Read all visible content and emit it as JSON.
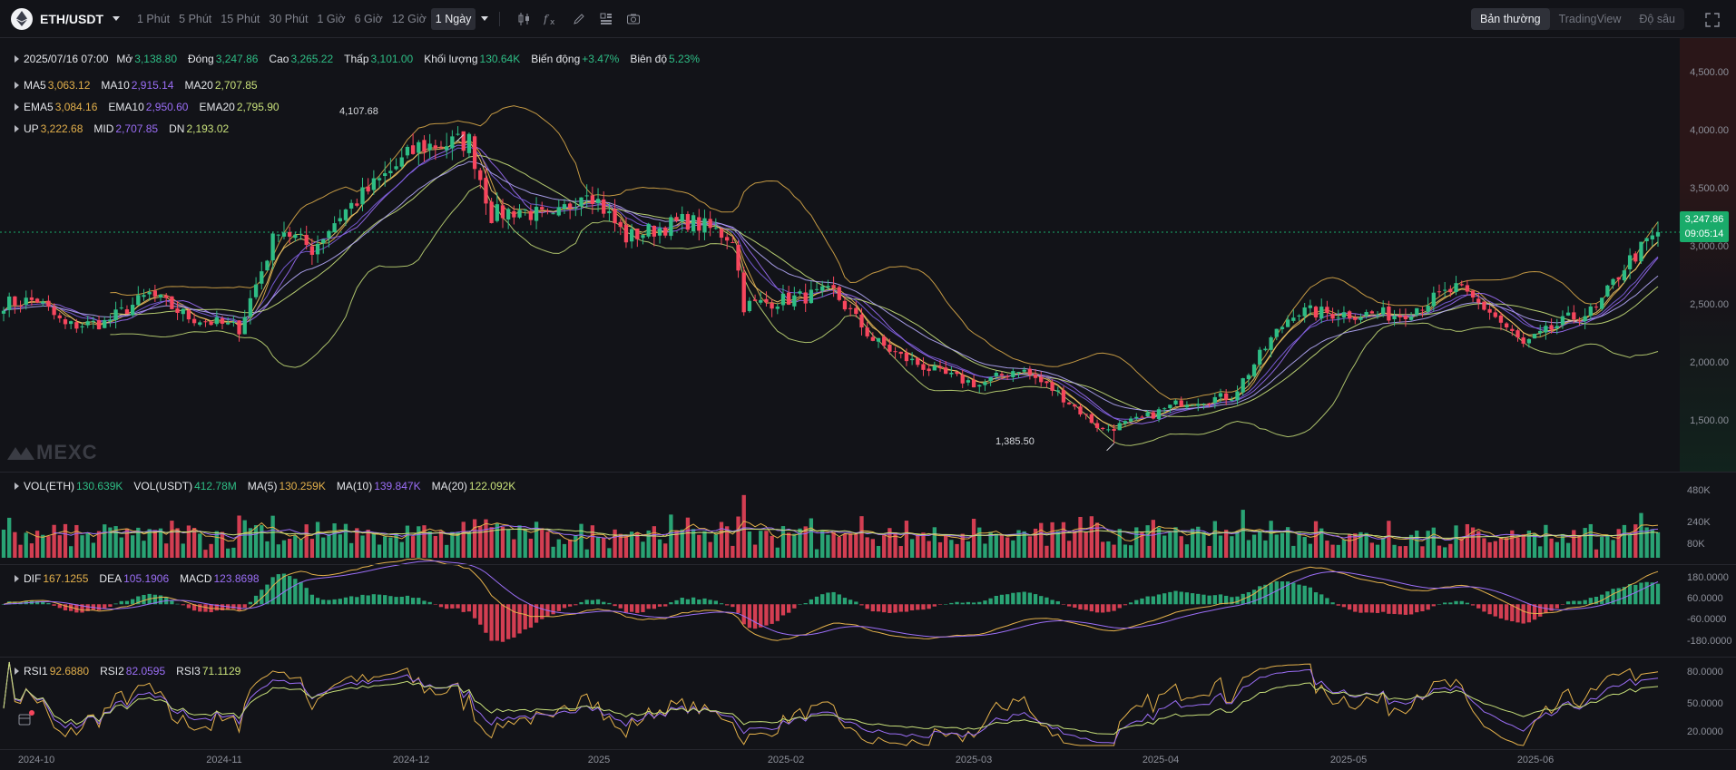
{
  "toolbar": {
    "pair": "ETH/USDT",
    "intervals": [
      "1 Phút",
      "5 Phút",
      "15 Phút",
      "30 Phút",
      "1 Giờ",
      "6 Giờ",
      "12 Giờ",
      "1 Ngày"
    ],
    "active_interval": "1 Ngày",
    "views": [
      "Bản thường",
      "TradingView",
      "Độ sâu"
    ],
    "active_view": "Bản thường"
  },
  "ohlc_legend": {
    "date": "2025/07/16 07:00",
    "open_label": "Mở",
    "open": "3,138.80",
    "close_label": "Đóng",
    "close": "3,247.86",
    "high_label": "Cao",
    "high": "3,265.22",
    "low_label": "Thấp",
    "low": "3,101.00",
    "volume_label": "Khối lượng",
    "volume": "130.64K",
    "change_label": "Biến động",
    "change": "+3.47%",
    "amplitude_label": "Biên độ",
    "amplitude": "5.23%"
  },
  "ma_legend": {
    "ma5_label": "MA5",
    "ma5": "3,063.12",
    "ma10_label": "MA10",
    "ma10": "2,915.14",
    "ma20_label": "MA20",
    "ma20": "2,707.85"
  },
  "ema_legend": {
    "ema5_label": "EMA5",
    "ema5": "3,084.16",
    "ema10_label": "EMA10",
    "ema10": "2,950.60",
    "ema20_label": "EMA20",
    "ema20": "2,795.90"
  },
  "boll_legend": {
    "up_label": "UP",
    "up": "3,222.68",
    "mid_label": "MID",
    "mid": "2,707.85",
    "dn_label": "DN",
    "dn": "2,193.02"
  },
  "vol_legend": {
    "eth_label": "VOL(ETH)",
    "eth": "130.639K",
    "usdt_label": "VOL(USDT)",
    "usdt": "412.78M",
    "ma5_label": "MA(5)",
    "ma5": "130.259K",
    "ma10_label": "MA(10)",
    "ma10": "139.847K",
    "ma20_label": "MA(20)",
    "ma20": "122.092K"
  },
  "macd_legend": {
    "dif_label": "DIF",
    "dif": "167.1255",
    "dea_label": "DEA",
    "dea": "105.1906",
    "macd_label": "MACD",
    "macd": "123.8698"
  },
  "rsi_legend": {
    "rsi1_label": "RSI1",
    "rsi1": "92.6880",
    "rsi2_label": "RSI2",
    "rsi2": "82.0595",
    "rsi3_label": "RSI3",
    "rsi3": "71.1129"
  },
  "price_axis": [
    "4,500.00",
    "4,000.00",
    "3,500.00",
    "3,000.00",
    "2,500.00",
    "2,000.00",
    "1,500.00"
  ],
  "volume_axis": [
    "480K",
    "240K",
    "80K"
  ],
  "macd_axis": [
    "180.0000",
    "60.0000",
    "-60.0000",
    "-180.0000"
  ],
  "rsi_axis": [
    "80.0000",
    "50.0000",
    "20.0000"
  ],
  "date_axis": [
    "2024-10",
    "2024-11",
    "2024-12",
    "2025",
    "2025-02",
    "2025-03",
    "2025-04",
    "2025-05",
    "2025-06"
  ],
  "current_price": "3,247.86",
  "countdown": "09:05:14",
  "highest_marker": "4,107.68",
  "lowest_marker": "1,385.50",
  "watermark": "MEXC",
  "colors": {
    "up": "#2ebd85",
    "down": "#f6465d",
    "background": "#121318",
    "ma5": "#e3b04b",
    "ma10": "#9b6ef6",
    "ma20": "#c8e07a"
  },
  "chart_data": {
    "type": "candlestick",
    "timeframe": "1 Ngày",
    "x_range": [
      "2024-09-24",
      "2025-07-16"
    ],
    "anchors": [
      [
        "2024-09-24",
        2620
      ],
      [
        "2024-09-30",
        2650
      ],
      [
        "2024-10-05",
        2420
      ],
      [
        "2024-10-12",
        2450
      ],
      [
        "2024-10-20",
        2700
      ],
      [
        "2024-10-27",
        2500
      ],
      [
        "2024-11-05",
        2400
      ],
      [
        "2024-11-12",
        3300
      ],
      [
        "2024-11-18",
        3100
      ],
      [
        "2024-11-23",
        3400
      ],
      [
        "2024-11-30",
        3700
      ],
      [
        "2024-12-07",
        4000
      ],
      [
        "2024-12-16",
        4050
      ],
      [
        "2024-12-20",
        3400
      ],
      [
        "2024-12-25",
        3450
      ],
      [
        "2024-12-31",
        3350
      ],
      [
        "2025-01-06",
        3650
      ],
      [
        "2025-01-13",
        3200
      ],
      [
        "2025-01-20",
        3300
      ],
      [
        "2025-01-24",
        3350
      ],
      [
        "2025-02-01",
        3200
      ],
      [
        "2025-02-03",
        2600
      ],
      [
        "2025-02-10",
        2650
      ],
      [
        "2025-02-19",
        2720
      ],
      [
        "2025-02-26",
        2300
      ],
      [
        "2025-03-03",
        2150
      ],
      [
        "2025-03-10",
        2000
      ],
      [
        "2025-03-17",
        1900
      ],
      [
        "2025-03-24",
        2050
      ],
      [
        "2025-03-31",
        1830
      ],
      [
        "2025-04-08",
        1500
      ],
      [
        "2025-04-15",
        1600
      ],
      [
        "2025-04-22",
        1750
      ],
      [
        "2025-05-01",
        1800
      ],
      [
        "2025-05-08",
        2300
      ],
      [
        "2025-05-12",
        2550
      ],
      [
        "2025-05-20",
        2530
      ],
      [
        "2025-05-31",
        2520
      ],
      [
        "2025-06-10",
        2750
      ],
      [
        "2025-06-16",
        2550
      ],
      [
        "2025-06-22",
        2250
      ],
      [
        "2025-06-30",
        2480
      ],
      [
        "2025-07-05",
        2560
      ],
      [
        "2025-07-10",
        2950
      ],
      [
        "2025-07-16",
        3247.86
      ]
    ],
    "price_ylim": [
      1200,
      4800
    ],
    "volume_ylim": [
      0,
      540000
    ],
    "macd_ylim": [
      -260,
      200
    ],
    "rsi_ylim": [
      10,
      100
    ],
    "current_price": 3247.86,
    "highest": 4107.68,
    "lowest": 1385.5,
    "indicators": [
      "MA5",
      "MA10",
      "MA20",
      "EMA5",
      "EMA10",
      "EMA20",
      "BOLL(20)",
      "VOL",
      "MACD",
      "RSI"
    ]
  }
}
